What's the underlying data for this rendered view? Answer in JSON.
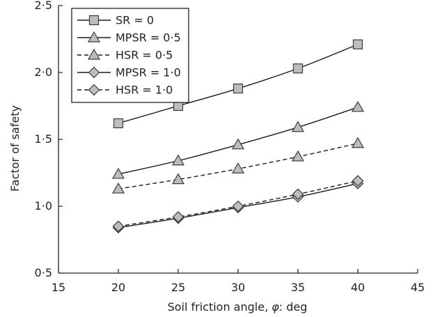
{
  "chart_data": {
    "type": "line",
    "title": "",
    "xlabel_prefix": "Soil friction angle, ",
    "xlabel_symbol": "φ",
    "xlabel_suffix": ": deg",
    "ylabel": "Factor of safety",
    "xlim": [
      15,
      45
    ],
    "ylim": [
      0.5,
      2.5
    ],
    "x_ticks": [
      15,
      20,
      25,
      30,
      35,
      40,
      45
    ],
    "x_tick_labels": [
      "15",
      "20",
      "25",
      "30",
      "35",
      "40",
      "45"
    ],
    "y_ticks": [
      0.5,
      1.0,
      1.5,
      2.0,
      2.5
    ],
    "y_tick_labels": [
      "0·5",
      "1·0",
      "1·5",
      "2·0",
      "2·5"
    ],
    "grid": false,
    "legend_position": "top-left",
    "x": [
      20,
      25,
      30,
      35,
      40
    ],
    "series": [
      {
        "name": "SR = 0",
        "marker": "square",
        "line": "solid",
        "values": [
          1.62,
          1.75,
          1.88,
          2.03,
          2.21
        ]
      },
      {
        "name": "MPSR = 0·5",
        "marker": "triangle",
        "line": "solid",
        "values": [
          1.24,
          1.34,
          1.46,
          1.59,
          1.74
        ]
      },
      {
        "name": "HSR = 0·5",
        "marker": "triangle",
        "line": "dashed",
        "values": [
          1.13,
          1.2,
          1.28,
          1.37,
          1.47
        ]
      },
      {
        "name": "MPSR = 1·0",
        "marker": "diamond",
        "line": "solid",
        "values": [
          0.84,
          0.91,
          0.99,
          1.07,
          1.17
        ]
      },
      {
        "name": "HSR = 1·0",
        "marker": "diamond",
        "line": "dashed",
        "values": [
          0.85,
          0.92,
          1.0,
          1.09,
          1.19
        ]
      }
    ],
    "colors": {
      "line": "#1a1a1a",
      "marker_fill": "#bdbdbd",
      "marker_stroke": "#3a3a3a",
      "axis": "#222222"
    }
  }
}
